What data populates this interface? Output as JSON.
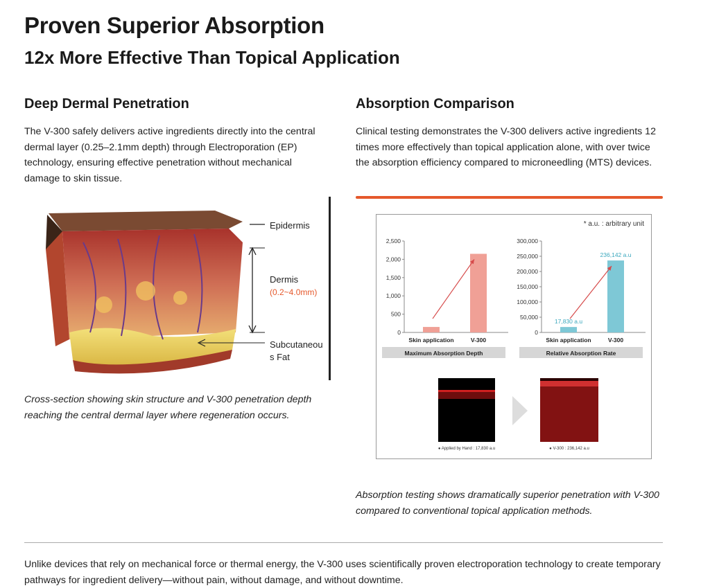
{
  "title": "Proven Superior Absorption",
  "subtitle": "12x More Effective Than Topical Application",
  "left": {
    "heading": "Deep Dermal Penetration",
    "body": "The V-300 safely delivers active ingredients directly into the central dermal layer (0.25–2.1mm depth) through Electroporation (EP) technology, ensuring effective penetration without mechanical damage to skin tissue.",
    "figure": {
      "label_epidermis": "Epidermis",
      "label_dermis": "Dermis",
      "label_dermis_range": "(0.2~4.0mm)",
      "label_subcutaneous_1": "Subcutaneou",
      "label_subcutaneous_2": "s Fat"
    },
    "caption": "Cross-section showing skin structure and V-300 penetration depth reaching the central dermal layer where regeneration occurs."
  },
  "right": {
    "heading": "Absorption Comparison",
    "body": "Clinical testing demonstrates the V-300 delivers active ingredients 12 times more effectively than topical application alone, with over twice the absorption efficiency compared to microneedling (MTS) devices.",
    "accent_color": "#e5582b",
    "note": "* a.u. : arbitrary unit",
    "caption": "Absorption testing shows dramatically superior penetration with V-300 compared to conventional topical application methods.",
    "image_captions": [
      "● Applied by Hand : 17,830 a.u",
      "● V-300 : 236,142 a.u"
    ]
  },
  "chart_data": [
    {
      "type": "bar",
      "categories": [
        "Skin application",
        "V-300"
      ],
      "values": [
        150,
        2150
      ],
      "ylim": [
        0,
        2500
      ],
      "yticks": [
        "0",
        "500",
        "1,000",
        "1,500",
        "2,000",
        "2,500"
      ],
      "title": "Maximum Absorption Depth",
      "colors": [
        "#f0a096",
        "#f0a096"
      ],
      "data_labels": [
        "",
        ""
      ]
    },
    {
      "type": "bar",
      "categories": [
        "Skin application",
        "V-300"
      ],
      "values": [
        17830,
        236142
      ],
      "ylim": [
        0,
        300000
      ],
      "yticks": [
        "0",
        "50,000",
        "100,000",
        "150,000",
        "200,000",
        "250,000",
        "300,000"
      ],
      "title": "Relative Absorption Rate",
      "colors": [
        "#7ec8d6",
        "#7ec8d6"
      ],
      "data_labels": [
        "17,830 a.u",
        "236,142 a.u"
      ]
    }
  ],
  "footer": "Unlike devices that rely on mechanical force or thermal energy, the V-300 uses scientifically proven electroporation technology to create temporary pathways for ingredient delivery—without pain, without damage, and without downtime."
}
